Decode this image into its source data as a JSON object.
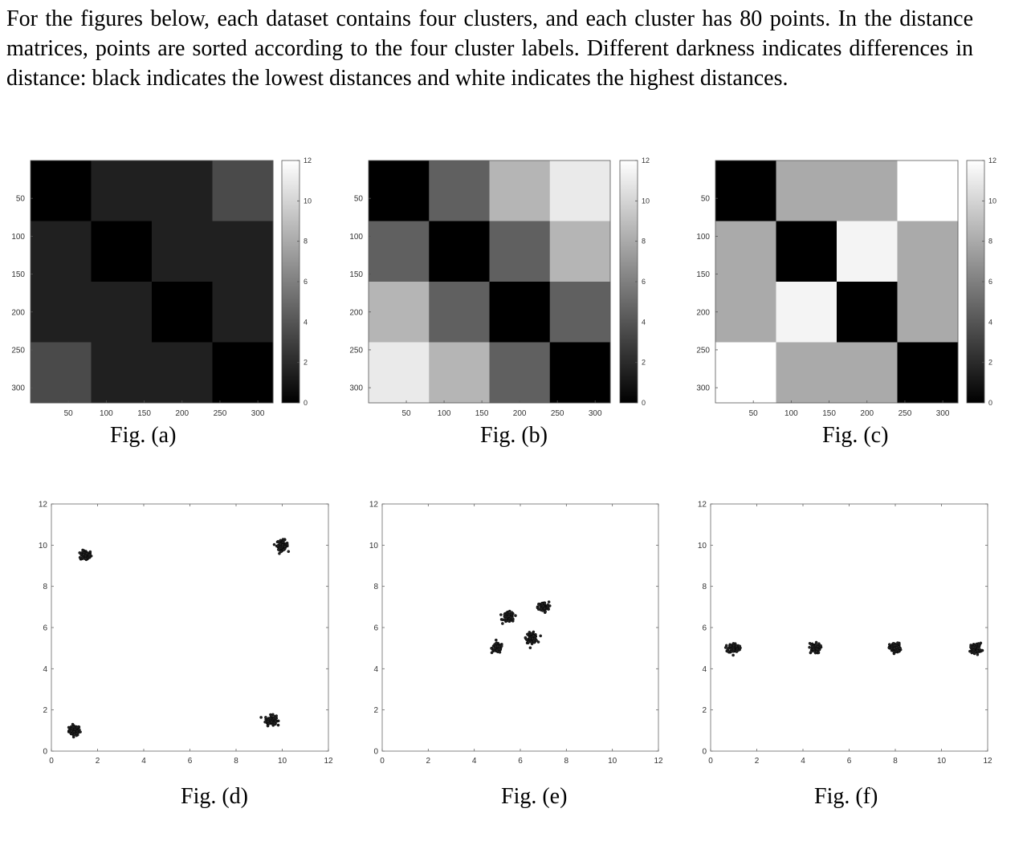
{
  "intro_text": "For the figures below, each dataset contains four clusters, and each cluster has 80 points. In the distance matrices, points are sorted according to the four cluster labels. Different darkness indicates differences in distance: black indicates the lowest distances and white indicates the highest distances.",
  "captions": [
    "Fig. (a)",
    "Fig. (b)",
    "Fig. (c)",
    "Fig. (d)",
    "Fig. (e)",
    "Fig. (f)"
  ],
  "chart_data": [
    {
      "type": "heatmap",
      "caption": "Fig. (a)",
      "cluster_size": 80,
      "n_points": 320,
      "block_distances": [
        [
          0,
          1.5,
          1.5,
          3.5
        ],
        [
          1.5,
          0,
          1.5,
          1.5
        ],
        [
          1.5,
          1.5,
          0,
          1.5
        ],
        [
          3.5,
          1.5,
          1.5,
          0
        ]
      ],
      "x_ticks": [
        50,
        100,
        150,
        200,
        250,
        300
      ],
      "y_ticks": [
        50,
        100,
        150,
        200,
        250,
        300
      ],
      "colorbar": {
        "min": 0,
        "max": 12,
        "ticks": [
          0,
          2,
          4,
          6,
          8,
          10,
          12
        ]
      },
      "colormap": "gray (black = low, white = high)"
    },
    {
      "type": "heatmap",
      "caption": "Fig. (b)",
      "cluster_size": 80,
      "n_points": 320,
      "block_distances": [
        [
          0,
          4.5,
          8.5,
          11
        ],
        [
          4.5,
          0,
          4.5,
          8.5
        ],
        [
          8.5,
          4.5,
          0,
          4.5
        ],
        [
          11,
          8.5,
          4.5,
          0
        ]
      ],
      "x_ticks": [
        50,
        100,
        150,
        200,
        250,
        300
      ],
      "y_ticks": [
        50,
        100,
        150,
        200,
        250,
        300
      ],
      "colorbar": {
        "min": 0,
        "max": 12,
        "ticks": [
          0,
          2,
          4,
          6,
          8,
          10,
          12
        ]
      },
      "colormap": "gray (black = low, white = high)"
    },
    {
      "type": "heatmap",
      "caption": "Fig. (c)",
      "cluster_size": 80,
      "n_points": 320,
      "block_distances": [
        [
          0,
          8,
          8,
          12
        ],
        [
          8,
          0,
          11.5,
          8
        ],
        [
          8,
          11.5,
          0,
          8
        ],
        [
          12,
          8,
          8,
          0
        ]
      ],
      "x_ticks": [
        50,
        100,
        150,
        200,
        250,
        300
      ],
      "y_ticks": [
        50,
        100,
        150,
        200,
        250,
        300
      ],
      "colorbar": {
        "min": 0,
        "max": 12,
        "ticks": [
          0,
          2,
          4,
          6,
          8,
          10,
          12
        ]
      },
      "colormap": "gray (black = low, white = high)"
    },
    {
      "type": "scatter",
      "caption": "Fig. (d)",
      "xlim": [
        0,
        12
      ],
      "ylim": [
        0,
        12
      ],
      "x_ticks": [
        0,
        2,
        4,
        6,
        8,
        10,
        12
      ],
      "y_ticks": [
        0,
        2,
        4,
        6,
        8,
        10,
        12
      ],
      "points_per_cluster": 80,
      "cluster_centers": [
        [
          1,
          1
        ],
        [
          1.5,
          9.5
        ],
        [
          9.5,
          1.5
        ],
        [
          10,
          10
        ]
      ]
    },
    {
      "type": "scatter",
      "caption": "Fig. (e)",
      "xlim": [
        0,
        12
      ],
      "ylim": [
        0,
        12
      ],
      "x_ticks": [
        0,
        2,
        4,
        6,
        8,
        10,
        12
      ],
      "y_ticks": [
        0,
        2,
        4,
        6,
        8,
        10,
        12
      ],
      "points_per_cluster": 80,
      "cluster_centers": [
        [
          5,
          5
        ],
        [
          5.5,
          6.5
        ],
        [
          6.5,
          5.5
        ],
        [
          7,
          7
        ]
      ]
    },
    {
      "type": "scatter",
      "caption": "Fig. (f)",
      "xlim": [
        0,
        12
      ],
      "ylim": [
        0,
        12
      ],
      "x_ticks": [
        0,
        2,
        4,
        6,
        8,
        10,
        12
      ],
      "y_ticks": [
        0,
        2,
        4,
        6,
        8,
        10,
        12
      ],
      "points_per_cluster": 80,
      "cluster_centers": [
        [
          1,
          5
        ],
        [
          4.5,
          5
        ],
        [
          8,
          5
        ],
        [
          11.5,
          5
        ]
      ]
    }
  ]
}
